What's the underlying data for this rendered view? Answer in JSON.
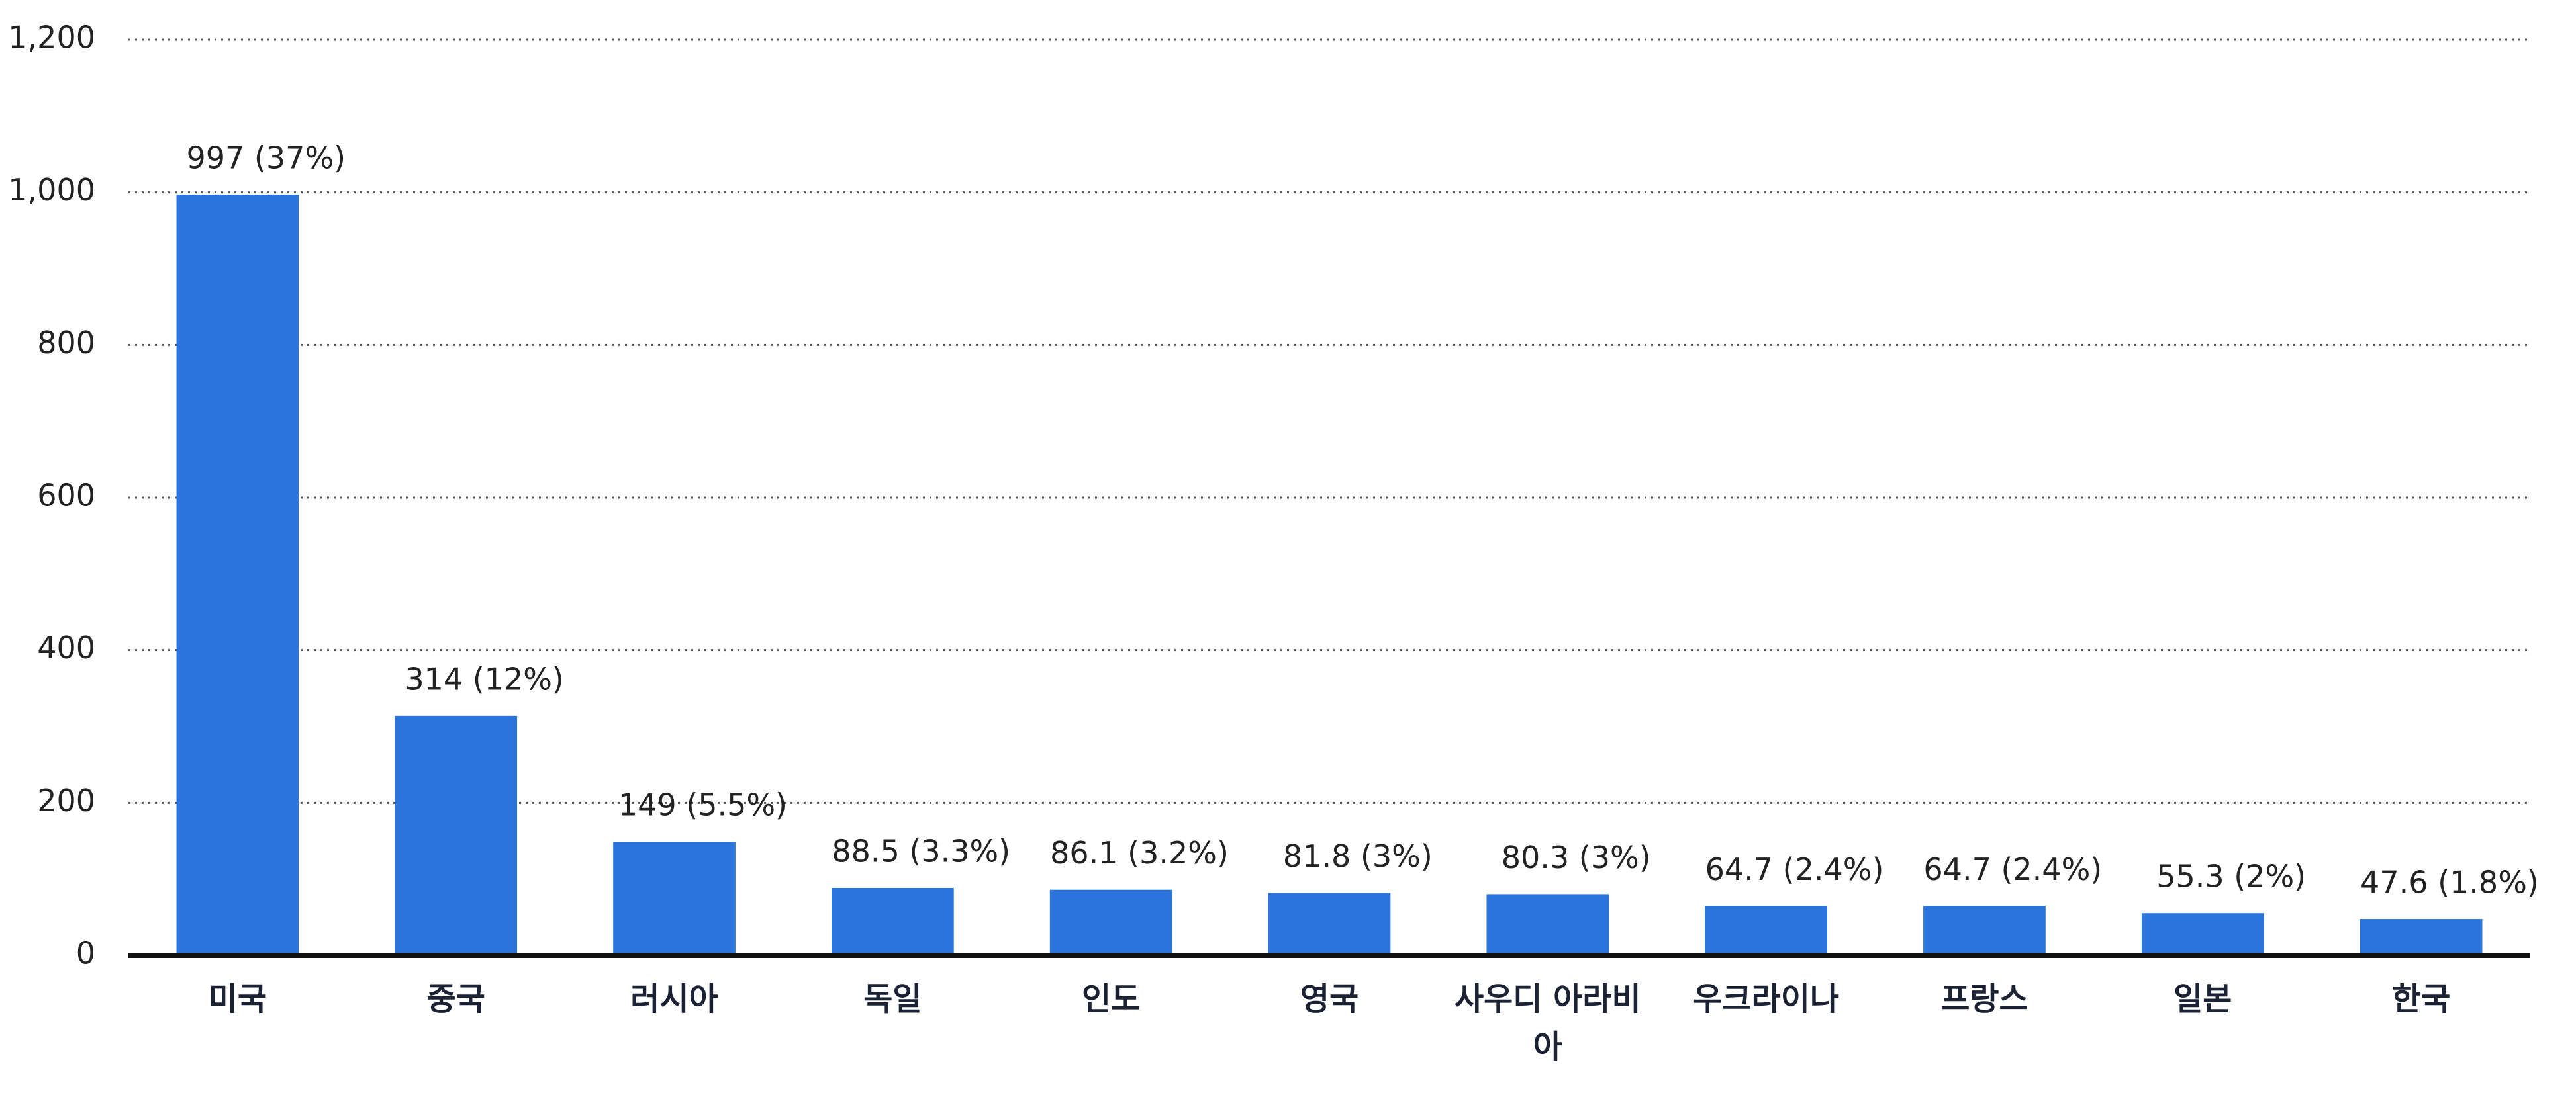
{
  "chart_data": {
    "type": "bar",
    "categories": [
      "미국",
      "중국",
      "러시아",
      "독일",
      "인도",
      "영국",
      "사우디 아라비아",
      "우크라이나",
      "프랑스",
      "일본",
      "한국"
    ],
    "values": [
      997,
      314,
      149,
      88.5,
      86.1,
      81.8,
      80.3,
      64.7,
      64.7,
      55.3,
      47.6
    ],
    "value_labels": [
      "997 (37%)",
      "314 (12%)",
      "149 (5.5%)",
      "88.5 (3.3%)",
      "86.1 (3.2%)",
      "81.8 (3%)",
      "80.3 (3%)",
      "64.7 (2.4%)",
      "64.7 (2.4%)",
      "55.3 (2%)",
      "47.6 (1.8%)"
    ],
    "color": "#2a74dc",
    "ylim": [
      0,
      1200
    ],
    "yticks": [
      0,
      200,
      400,
      600,
      800,
      {
        "value": 1000,
        "label": "1,000"
      },
      {
        "value": 1200,
        "label": "1,200"
      }
    ],
    "grid": true
  }
}
